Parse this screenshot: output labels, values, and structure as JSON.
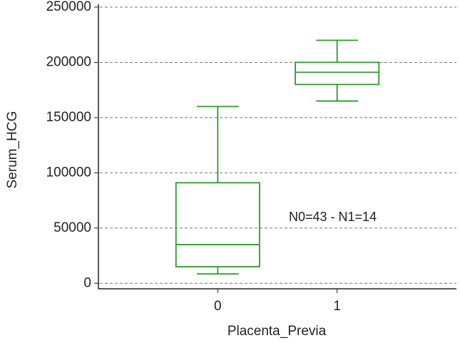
{
  "chart_data": {
    "type": "box",
    "x_label": "Placenta_Previa",
    "y_label": "Serum_HCG",
    "annotation": "N0=43 - N1=14",
    "x": [
      0,
      1
    ],
    "min": [
      8500,
      165000
    ],
    "q1": [
      15000,
      180000
    ],
    "median": [
      35000,
      191000
    ],
    "q3": [
      91000,
      200000
    ],
    "max": [
      160000,
      220000
    ],
    "color": "#2e9a2e",
    "xlim": [
      -1,
      2
    ],
    "xticks": [
      0,
      1
    ],
    "ylim": [
      -5000,
      250000
    ],
    "yticks": [
      0,
      50000,
      100000,
      150000,
      200000,
      250000
    ],
    "grid": true
  }
}
